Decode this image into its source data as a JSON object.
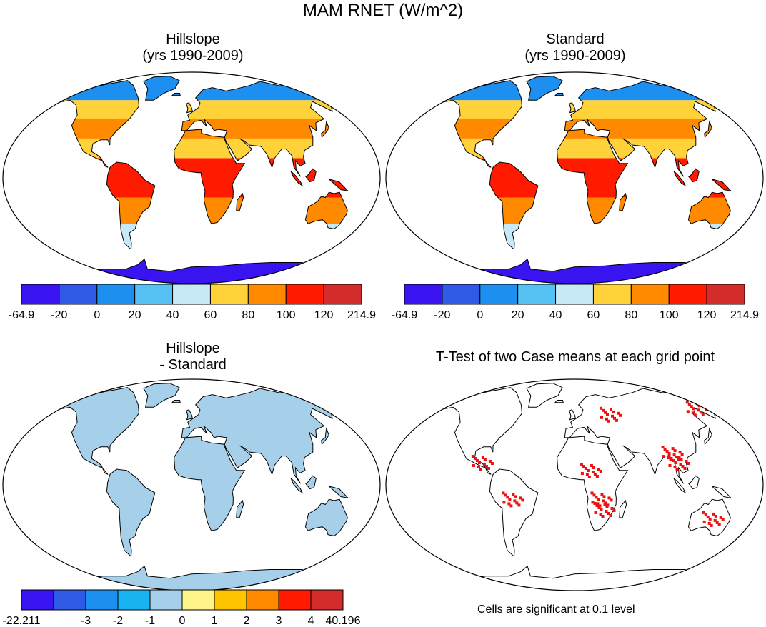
{
  "title": "MAM RNET (W/m^2)",
  "panels": [
    {
      "id": "hillslope",
      "title_line1": "Hillslope",
      "title_line2": "(yrs 1990-2009)"
    },
    {
      "id": "standard",
      "title_line1": "Standard",
      "title_line2": "(yrs 1990-2009)"
    },
    {
      "id": "difference",
      "title_line1": "Hillslope",
      "title_line2": "- Standard"
    },
    {
      "id": "ttest",
      "title_line1": "T-Test of two Case means at each grid point",
      "title_line2": ""
    }
  ],
  "note": "Cells are significant at 0.1 level",
  "colors": {
    "land_fill_diff": "#a6cfe9",
    "land_fill_ttest": "#ffffff",
    "significant": "#ee1111",
    "coastline": "#000000"
  },
  "chart_data": [
    {
      "type": "heatmap",
      "panel": "hillslope",
      "colorbar": {
        "labels": [
          "-64.9",
          "-20",
          "0",
          "20",
          "40",
          "60",
          "80",
          "100",
          "120",
          "214.9"
        ],
        "colors": [
          "#3a14f0",
          "#2f5ae6",
          "#1c8ff0",
          "#55c0f2",
          "#c6e8f7",
          "#ffd23a",
          "#ff8a00",
          "#ff1a00",
          "#d42b2b"
        ]
      }
    },
    {
      "type": "heatmap",
      "panel": "standard",
      "colorbar": {
        "labels": [
          "-64.9",
          "-20",
          "0",
          "20",
          "40",
          "60",
          "80",
          "100",
          "120",
          "214.9"
        ],
        "colors": [
          "#3a14f0",
          "#2f5ae6",
          "#1c8ff0",
          "#55c0f2",
          "#c6e8f7",
          "#ffd23a",
          "#ff8a00",
          "#ff1a00",
          "#d42b2b"
        ]
      }
    },
    {
      "type": "heatmap",
      "panel": "difference",
      "colorbar": {
        "labels": [
          "-22.211",
          "",
          "-3",
          "-2",
          "-1",
          "0",
          "1",
          "2",
          "3",
          "4",
          "40.196"
        ],
        "colors": [
          "#3a14f0",
          "#2f5ae6",
          "#1c8ff0",
          "#18b4f2",
          "#a6cfe9",
          "#fff48a",
          "#ffc400",
          "#ff8a00",
          "#ff1a00",
          "#d42b2b"
        ]
      }
    },
    {
      "type": "heatmap",
      "panel": "ttest",
      "legend": "Cells are significant at 0.1 level"
    }
  ]
}
